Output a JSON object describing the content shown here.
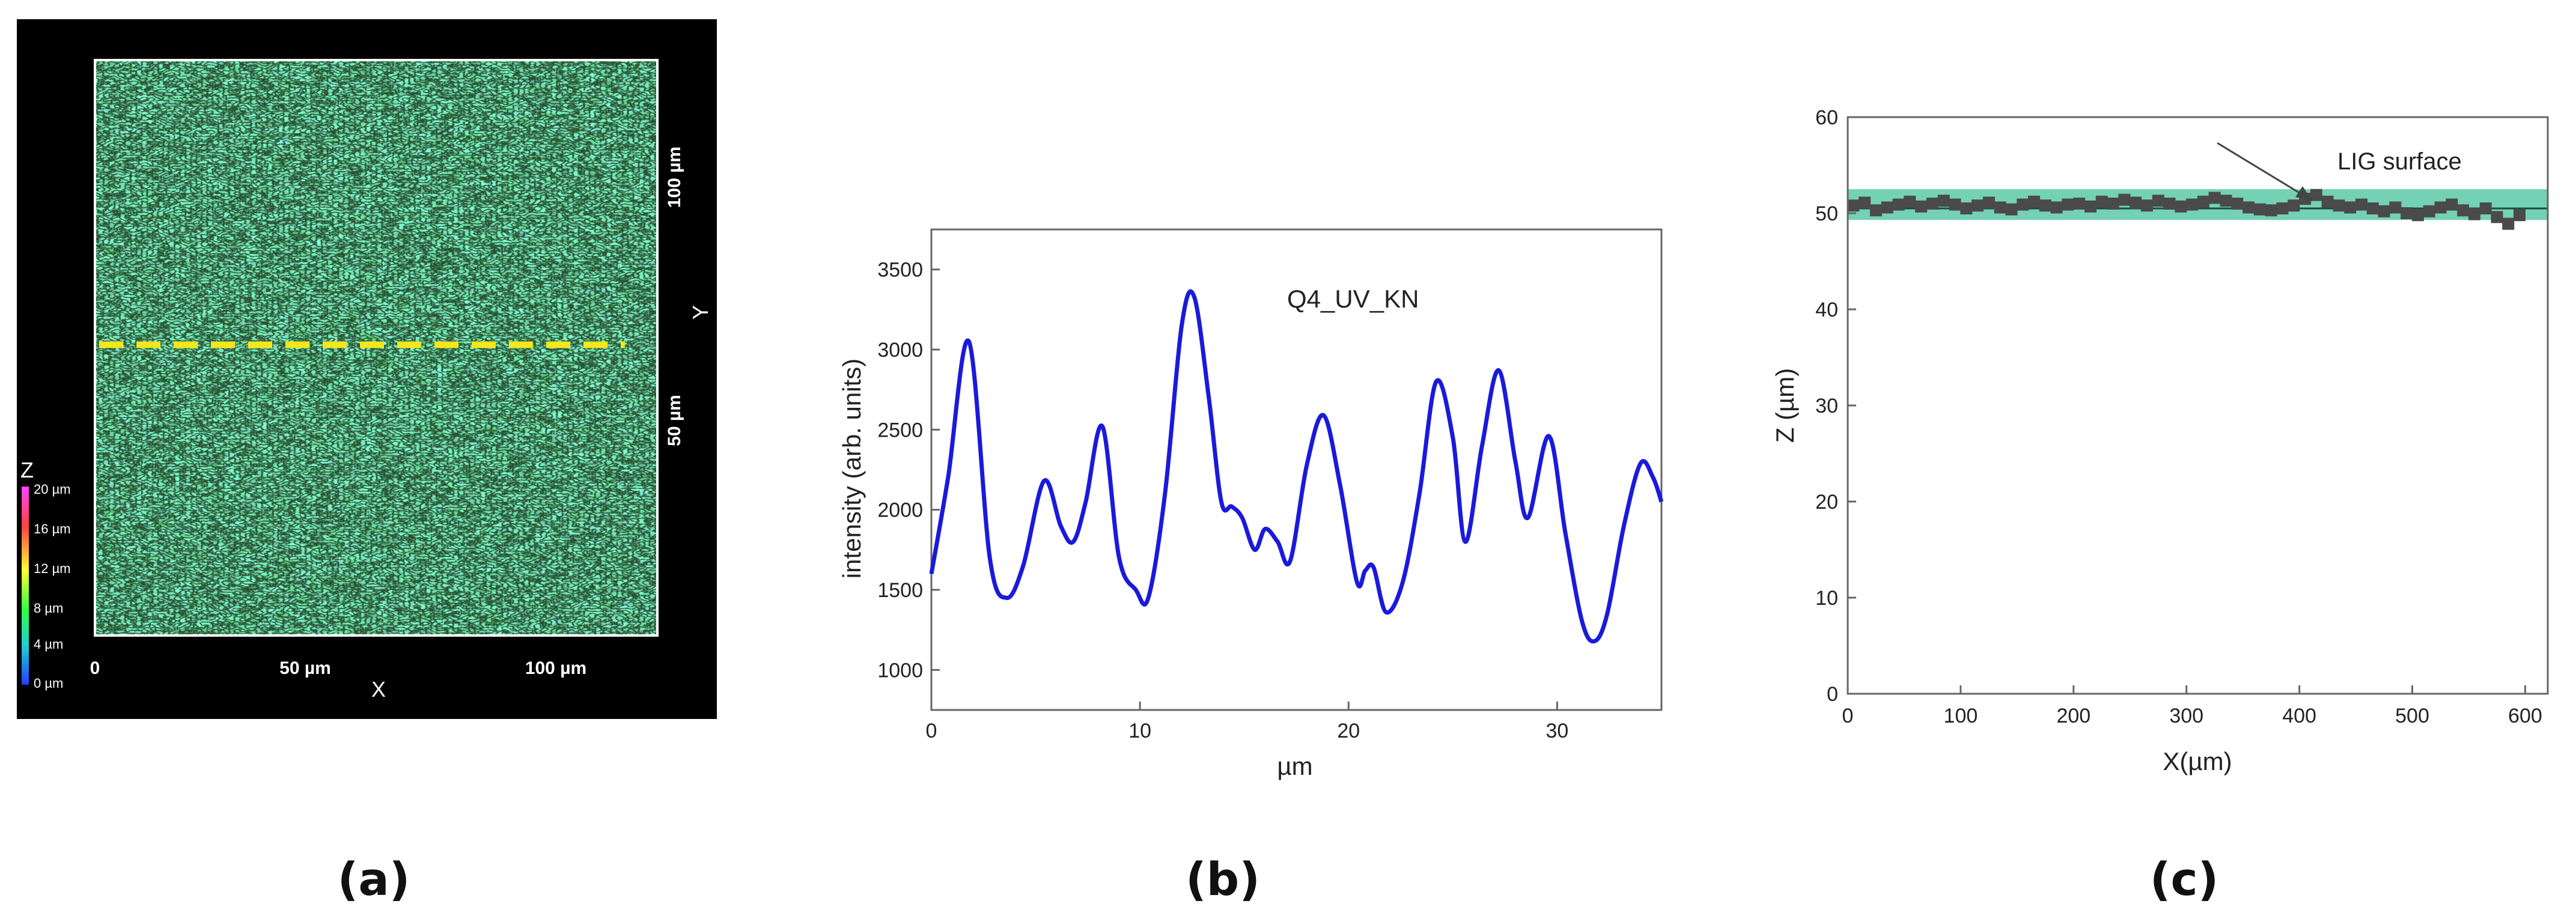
{
  "panels": {
    "a_label": "(a)",
    "b_label": "(b)",
    "c_label": "(c)"
  },
  "micrograph": {
    "x_axis_label": "X",
    "y_axis_label": "Y",
    "x_ticks": [
      "0",
      "50 µm",
      "100 µm"
    ],
    "y_ticks": [
      "100 µm",
      "50 µm"
    ],
    "colorbar_title": "Z",
    "colorbar_ticks": [
      "20 µm",
      "16 µm",
      "12 µm",
      "8 µm",
      "4 µm",
      "0 µm"
    ],
    "colorbar_colors": [
      "#ff44ff",
      "#ff4040",
      "#ffff30",
      "#30ff40",
      "#20d0d0",
      "#2040ff"
    ],
    "line_profile_color": "#f5e61e",
    "surface_colors": [
      "#1f8a2a",
      "#2aa14b",
      "#1fa98a",
      "#6dbb2c",
      "#0d3a12"
    ]
  },
  "chart_data": [
    {
      "type": "line",
      "title": "",
      "annotation": "Q4_UV_KN",
      "xlabel": "µm",
      "ylabel": "intensity (arb. units)",
      "xlim": [
        0,
        35
      ],
      "ylim": [
        750,
        3750
      ],
      "x_ticks": [
        "0",
        "10",
        "20",
        "30"
      ],
      "y_ticks": [
        "1000",
        "1500",
        "2000",
        "2500",
        "3000",
        "3500"
      ],
      "grid": false,
      "line_color": "#1a1adc",
      "x": [
        0,
        0.8,
        1.8,
        2.8,
        3.6,
        4.4,
        5.4,
        6.2,
        6.8,
        7.4,
        8.2,
        9.0,
        9.8,
        10.4,
        11.2,
        12.0,
        12.6,
        13.3,
        13.9,
        14.4,
        14.9,
        15.5,
        16.0,
        16.6,
        17.2,
        18.0,
        18.8,
        19.6,
        20.4,
        20.8,
        21.2,
        21.8,
        22.6,
        23.4,
        24.2,
        25.0,
        25.6,
        26.4,
        27.2,
        28.0,
        28.6,
        29.6,
        30.4,
        31.2,
        31.8,
        32.4,
        33.2,
        34.0,
        34.6,
        35.0
      ],
      "values": [
        1600,
        2200,
        3050,
        1700,
        1450,
        1650,
        2180,
        1900,
        1800,
        2050,
        2520,
        1700,
        1500,
        1450,
        2100,
        3150,
        3330,
        2700,
        2050,
        2020,
        1950,
        1750,
        1880,
        1800,
        1680,
        2280,
        2590,
        2150,
        1550,
        1620,
        1640,
        1360,
        1550,
        2100,
        2800,
        2450,
        1800,
        2400,
        2870,
        2300,
        1950,
        2460,
        1850,
        1300,
        1180,
        1350,
        1900,
        2290,
        2200,
        2050
      ]
    },
    {
      "type": "scatter",
      "title": "",
      "xlabel": "X(µm)",
      "ylabel": "Z (µm)",
      "xlim": [
        0,
        620
      ],
      "ylim": [
        0,
        60
      ],
      "x_ticks": [
        "0",
        "100",
        "200",
        "300",
        "400",
        "500",
        "600"
      ],
      "y_ticks": [
        "0",
        "10",
        "20",
        "30",
        "40",
        "50",
        "60"
      ],
      "grid": false,
      "annotation": "LIG surface",
      "band": {
        "ymin": 49.3,
        "ymax": 52.5,
        "color": "#5cc9a7"
      },
      "fit_line_y": 50.5,
      "marker_color": "#4a4a4a",
      "x": [
        5,
        15,
        25,
        35,
        45,
        55,
        65,
        75,
        85,
        95,
        105,
        115,
        125,
        135,
        145,
        155,
        165,
        175,
        185,
        195,
        205,
        215,
        225,
        235,
        245,
        255,
        265,
        275,
        285,
        295,
        305,
        315,
        325,
        335,
        345,
        355,
        365,
        375,
        385,
        395,
        405,
        415,
        425,
        435,
        445,
        455,
        465,
        475,
        485,
        495,
        505,
        515,
        525,
        535,
        545,
        555,
        565,
        575,
        585,
        595
      ],
      "values": [
        50.8,
        51.1,
        50.3,
        50.6,
        50.9,
        51.2,
        50.7,
        51.0,
        51.3,
        50.9,
        50.5,
        50.8,
        51.1,
        50.6,
        50.4,
        50.9,
        51.2,
        50.8,
        50.6,
        50.9,
        51.0,
        50.7,
        51.2,
        51.0,
        51.4,
        51.1,
        50.8,
        51.3,
        51.0,
        50.7,
        50.9,
        51.2,
        51.6,
        51.3,
        51.0,
        50.6,
        50.4,
        50.3,
        50.5,
        50.8,
        51.5,
        51.9,
        51.2,
        50.8,
        50.6,
        50.9,
        50.5,
        50.2,
        50.6,
        50.0,
        49.8,
        50.2,
        50.6,
        50.9,
        50.3,
        49.9,
        50.5,
        49.6,
        48.9,
        49.8
      ]
    }
  ]
}
